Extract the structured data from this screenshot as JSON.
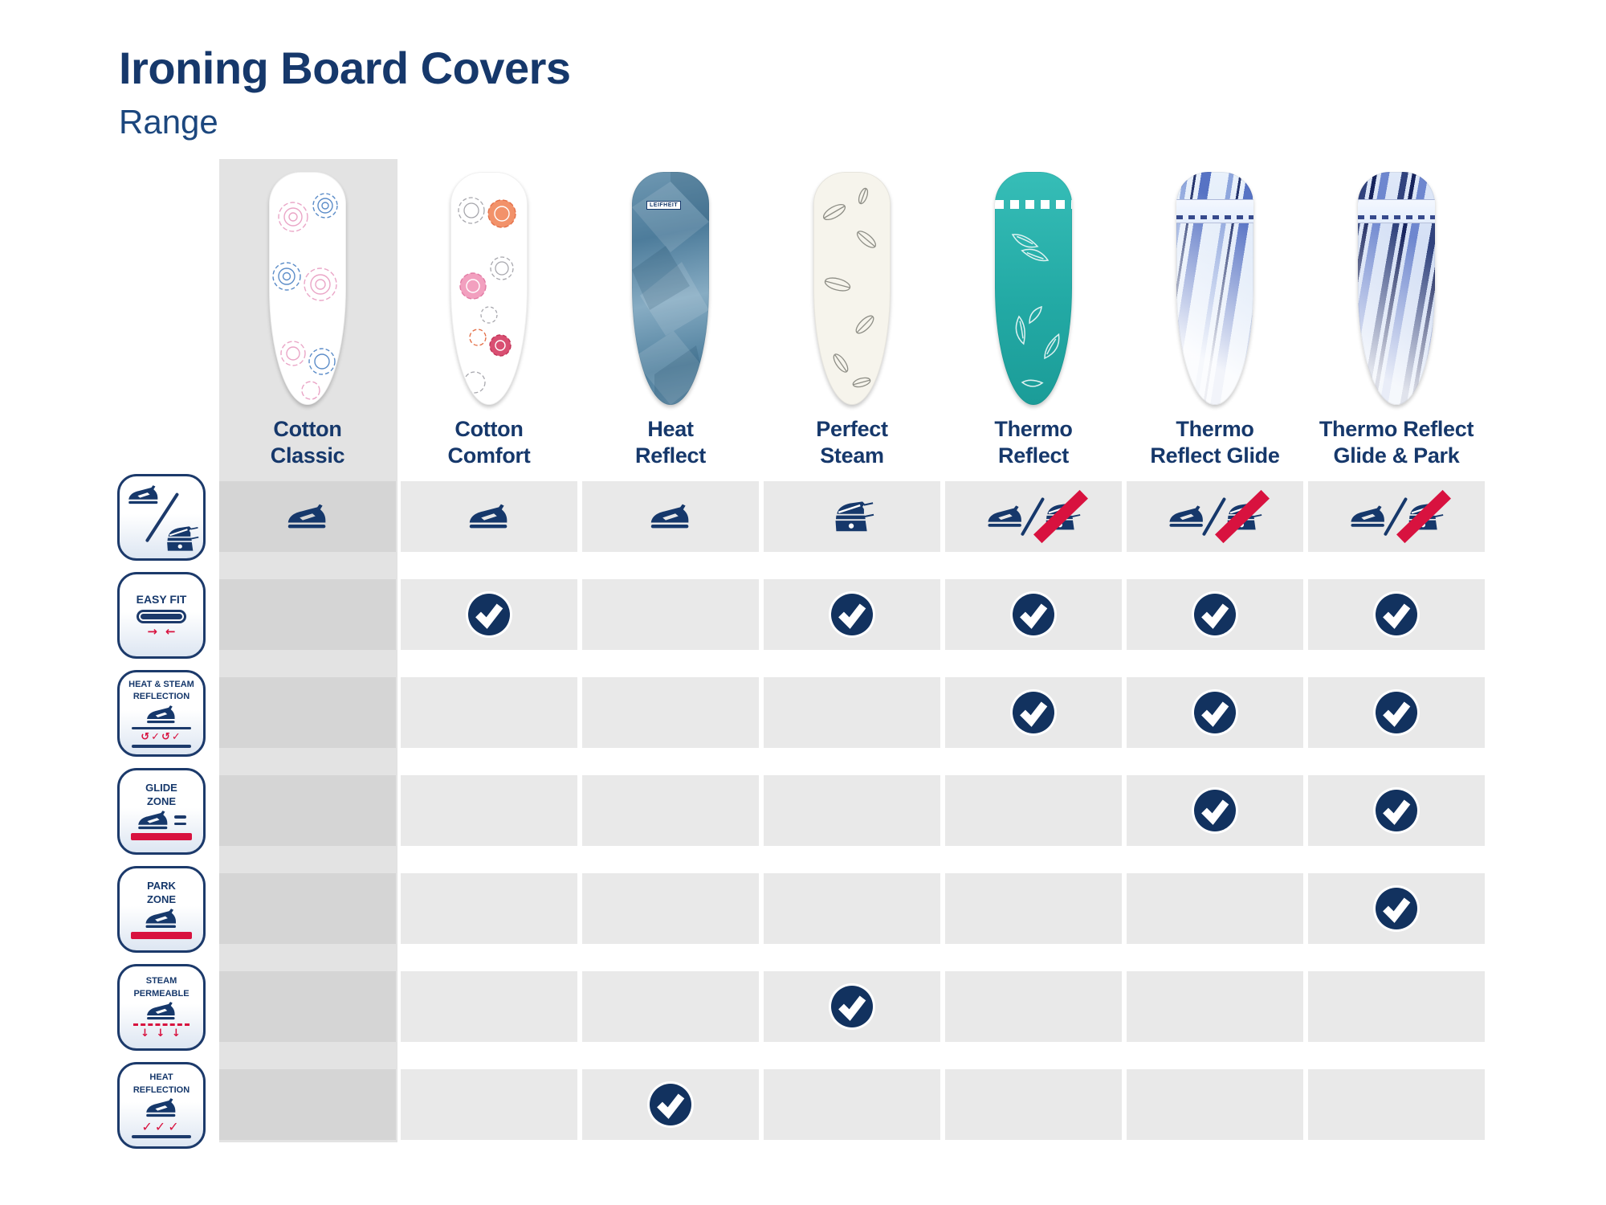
{
  "header": {
    "title": "Ironing Board Covers",
    "subtitle": "Range"
  },
  "brand_label": "LEIFHEIT",
  "products": [
    {
      "name_line1": "Cotton",
      "name_line2": "Classic",
      "highlighted": true,
      "pattern": "pink-blue-flowers-on-white",
      "compat": "iron"
    },
    {
      "name_line1": "Cotton",
      "name_line2": "Comfort",
      "highlighted": false,
      "pattern": "orange-pink-flowers-on-white",
      "compat": "iron"
    },
    {
      "name_line1": "Heat",
      "name_line2": "Reflect",
      "highlighted": false,
      "pattern": "blue-diamond-facets",
      "compat": "iron"
    },
    {
      "name_line1": "Perfect",
      "name_line2": "Steam",
      "highlighted": false,
      "pattern": "gray-leaves-on-cream",
      "compat": "steam-generator"
    },
    {
      "name_line1": "Thermo",
      "name_line2": "Reflect",
      "highlighted": false,
      "pattern": "white-feathers-on-teal",
      "compat": "iron-not-steam-generator"
    },
    {
      "name_line1": "Thermo",
      "name_line2": "Reflect Glide",
      "highlighted": false,
      "pattern": "blue-diagonal-stripes-light",
      "compat": "iron-not-steam-generator"
    },
    {
      "name_line1": "Thermo Reflect",
      "name_line2": "Glide & Park",
      "highlighted": false,
      "pattern": "blue-diagonal-stripes-dark",
      "compat": "iron-not-steam-generator"
    }
  ],
  "features": [
    {
      "label": "Suitable for iron / steam generator",
      "label_lines": [],
      "type": "compat"
    },
    {
      "label": "EASY FIT",
      "label_lines": [
        "EASY FIT"
      ],
      "checks": [
        0,
        1,
        0,
        1,
        1,
        1,
        1
      ]
    },
    {
      "label": "HEAT & STEAM REFLECTION",
      "label_lines": [
        "HEAT & STEAM",
        "REFLECTION"
      ],
      "checks": [
        0,
        0,
        0,
        0,
        1,
        1,
        1
      ]
    },
    {
      "label": "GLIDE ZONE",
      "label_lines": [
        "GLIDE",
        "ZONE"
      ],
      "checks": [
        0,
        0,
        0,
        0,
        0,
        1,
        1
      ]
    },
    {
      "label": "PARK ZONE",
      "label_lines": [
        "PARK",
        "ZONE"
      ],
      "checks": [
        0,
        0,
        0,
        0,
        0,
        0,
        1
      ]
    },
    {
      "label": "STEAM PERMEABLE",
      "label_lines": [
        "STEAM",
        "PERMEABLE"
      ],
      "checks": [
        0,
        0,
        0,
        1,
        0,
        0,
        0
      ]
    },
    {
      "label": "HEAT REFLECTION",
      "label_lines": [
        "HEAT",
        "REFLECTION"
      ],
      "checks": [
        0,
        0,
        1,
        0,
        0,
        0,
        0
      ]
    }
  ],
  "colors": {
    "navy": "#16386b",
    "red": "#d8123f",
    "teal": "#2ab3ad",
    "row_gray": "#e9e9e9",
    "column_highlight_gray": "#e3e3e3",
    "overlap_gray": "#d5d5d5"
  }
}
